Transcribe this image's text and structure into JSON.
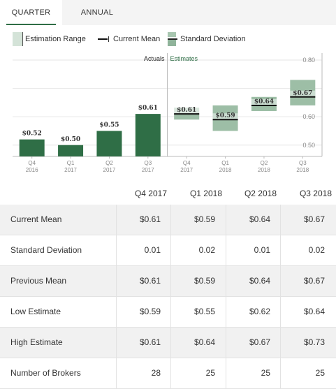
{
  "tabs": [
    {
      "label": "QUARTER",
      "active": true
    },
    {
      "label": "ANNUAL",
      "active": false
    }
  ],
  "legend": {
    "range": "Estimation Range",
    "mean": "Current Mean",
    "std": "Standard Deviation"
  },
  "colors": {
    "bar": "#2f6e46",
    "range": "#d4e3d8",
    "std": "#9dbea6",
    "mean_line": "#111111",
    "grid": "#e6e6e6",
    "axis": "#bbbbbb"
  },
  "chart_data": {
    "type": "bar",
    "section_labels": {
      "actuals": "Actuals",
      "estimates": "Estimates"
    },
    "ylim": [
      0.46,
      0.8
    ],
    "yticks": [
      "0.80",
      "0.70",
      "0.60",
      "0.50"
    ],
    "ytick_values": [
      0.8,
      0.7,
      0.6,
      0.5
    ],
    "categories": [
      [
        "Q4",
        "2016"
      ],
      [
        "Q1",
        "2017"
      ],
      [
        "Q2",
        "2017"
      ],
      [
        "Q3",
        "2017"
      ],
      [
        "Q4",
        "2017"
      ],
      [
        "Q1",
        "2018"
      ],
      [
        "Q2",
        "2018"
      ],
      [
        "Q3",
        "2018"
      ]
    ],
    "actuals": [
      {
        "value": 0.52,
        "label": "$0.52"
      },
      {
        "value": 0.5,
        "label": "$0.50"
      },
      {
        "value": 0.55,
        "label": "$0.55"
      },
      {
        "value": 0.61,
        "label": "$0.61"
      }
    ],
    "estimates": [
      {
        "mean": 0.61,
        "std": 0.01,
        "low": 0.59,
        "high": 0.61,
        "label": "$0.61"
      },
      {
        "mean": 0.59,
        "std": 0.02,
        "low": 0.55,
        "high": 0.64,
        "label": "$0.59"
      },
      {
        "mean": 0.64,
        "std": 0.01,
        "low": 0.62,
        "high": 0.67,
        "label": "$0.64"
      },
      {
        "mean": 0.67,
        "std": 0.02,
        "low": 0.64,
        "high": 0.73,
        "label": "$0.67"
      }
    ]
  },
  "table": {
    "columns": [
      "Q4 2017",
      "Q1 2018",
      "Q2 2018",
      "Q3 2018"
    ],
    "rows": [
      {
        "label": "Current Mean",
        "values": [
          "$0.61",
          "$0.59",
          "$0.64",
          "$0.67"
        ]
      },
      {
        "label": "Standard Deviation",
        "values": [
          "0.01",
          "0.02",
          "0.01",
          "0.02"
        ]
      },
      {
        "label": "Previous Mean",
        "values": [
          "$0.61",
          "$0.59",
          "$0.64",
          "$0.67"
        ]
      },
      {
        "label": "Low Estimate",
        "values": [
          "$0.59",
          "$0.55",
          "$0.62",
          "$0.64"
        ]
      },
      {
        "label": "High Estimate",
        "values": [
          "$0.61",
          "$0.64",
          "$0.67",
          "$0.73"
        ]
      },
      {
        "label": "Number of Brokers",
        "values": [
          "28",
          "25",
          "25",
          "25"
        ]
      }
    ]
  }
}
